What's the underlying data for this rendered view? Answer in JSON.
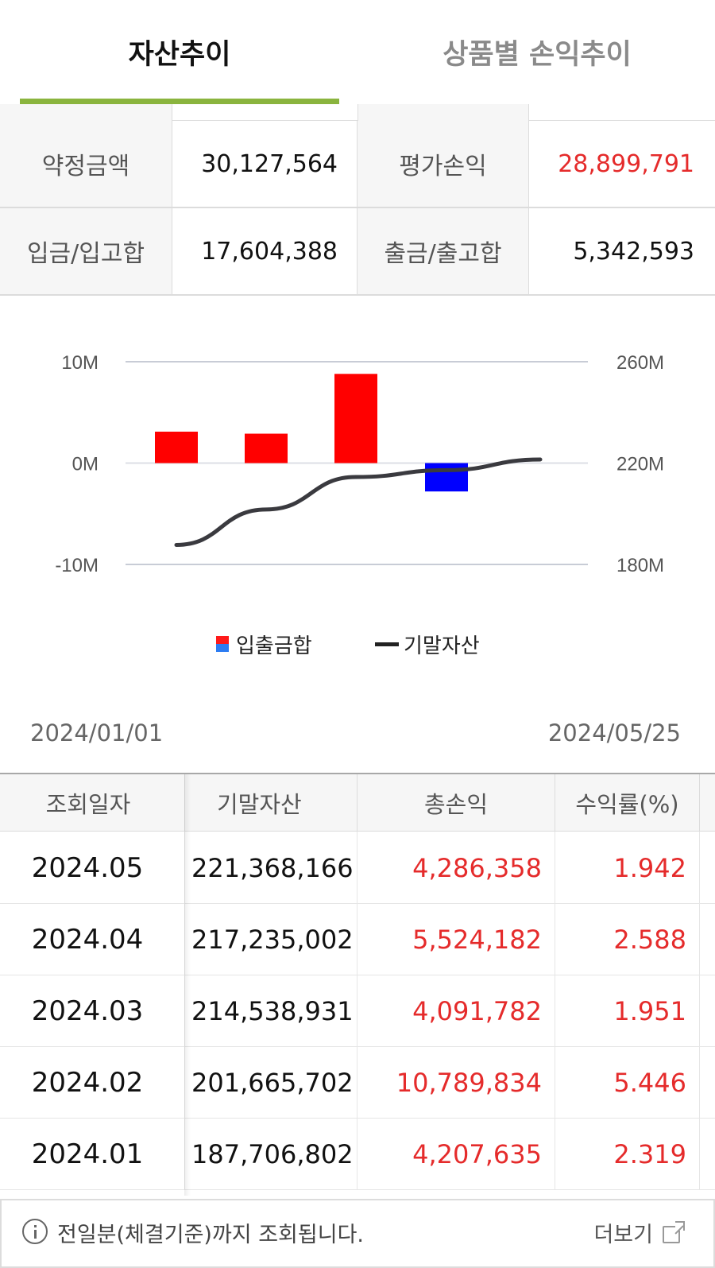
{
  "tabs": [
    {
      "label": "자산추이",
      "active": true
    },
    {
      "label": "상품별 손익추이",
      "active": false
    }
  ],
  "summary": {
    "commit_label": "약정금액",
    "commit_value": "30,127,564",
    "eval_label": "평가손익",
    "eval_value": "28,899,791",
    "deposit_label": "입금/입고합",
    "deposit_value": "17,604,388",
    "withdraw_label": "출금/출고합",
    "withdraw_value": "5,342,593"
  },
  "colors": {
    "accent": "#8ab43e",
    "positive": "#e52b2b",
    "bar_positive": "#ff0000",
    "bar_negative": "#0000ff",
    "line": "#3a3a3f"
  },
  "chart_data": {
    "type": "bar",
    "categories": [
      "2024.01",
      "2024.02",
      "2024.03",
      "2024.04",
      "2024.05"
    ],
    "series": [
      {
        "name": "입출금합",
        "axis": "left",
        "type": "bar",
        "values": [
          3.1,
          2.9,
          8.8,
          -2.8,
          null
        ]
      },
      {
        "name": "기말자산",
        "axis": "right",
        "type": "line",
        "values": [
          187.7,
          201.7,
          214.5,
          217.2,
          221.4
        ]
      }
    ],
    "left_ticks": [
      "10M",
      "0M",
      "-10M"
    ],
    "right_ticks": [
      "260M",
      "220M",
      "180M"
    ],
    "left_ylim": [
      -10,
      10
    ],
    "right_ylim": [
      180,
      260
    ],
    "legend_position": "bottom"
  },
  "legend": {
    "bar": "입출금합",
    "line": "기말자산"
  },
  "date_range": {
    "from": "2024/01/01",
    "to": "2024/05/25"
  },
  "table": {
    "headers": [
      "조회일자",
      "기말자산",
      "총손익",
      "수익률(%)"
    ],
    "rows": [
      [
        "2024.05",
        "221,368,166",
        "4,286,358",
        "1.942"
      ],
      [
        "2024.04",
        "217,235,002",
        "5,524,182",
        "2.588"
      ],
      [
        "2024.03",
        "214,538,931",
        "4,091,782",
        "1.951"
      ],
      [
        "2024.02",
        "201,665,702",
        "10,789,834",
        "5.446"
      ],
      [
        "2024.01",
        "187,706,802",
        "4,207,635",
        "2.319"
      ]
    ]
  },
  "footer": {
    "note": "전일분(체결기준)까지 조회됩니다.",
    "more_label": "더보기"
  },
  "icons": {
    "info": "info-icon",
    "external": "external-link-icon"
  }
}
